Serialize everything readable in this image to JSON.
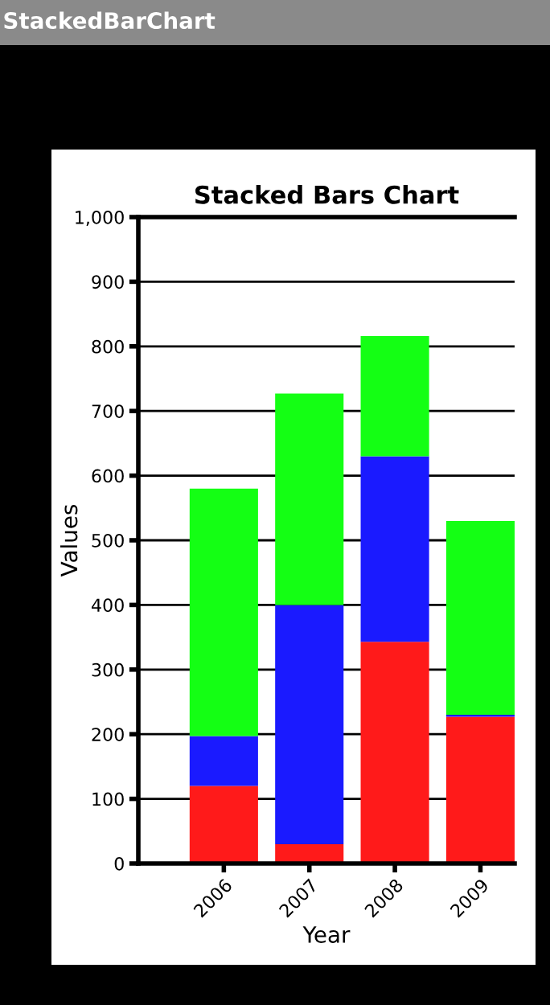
{
  "chart_data": {
    "type": "bar",
    "title": "Stacked Bars Chart",
    "xlabel": "Year",
    "ylabel": "Values",
    "annotations": [
      "StackedBarChart"
    ],
    "categories": [
      "2006",
      "2007",
      "2008",
      "2009"
    ],
    "stacked": true,
    "series": [
      {
        "color": "#ff1a1a",
        "values": [
          120,
          30,
          343,
          227
        ]
      },
      {
        "color": "#1a1aff",
        "values": [
          77,
          370,
          287,
          3
        ]
      },
      {
        "color": "#14ff14",
        "values": [
          383,
          327,
          186,
          300
        ]
      }
    ],
    "ylim": [
      0,
      1000
    ],
    "yticks": [
      0,
      100,
      200,
      300,
      400,
      500,
      600,
      700,
      800,
      900,
      {
        "value": 1000,
        "label": "1,000"
      }
    ],
    "grid": "y",
    "legend": false
  }
}
